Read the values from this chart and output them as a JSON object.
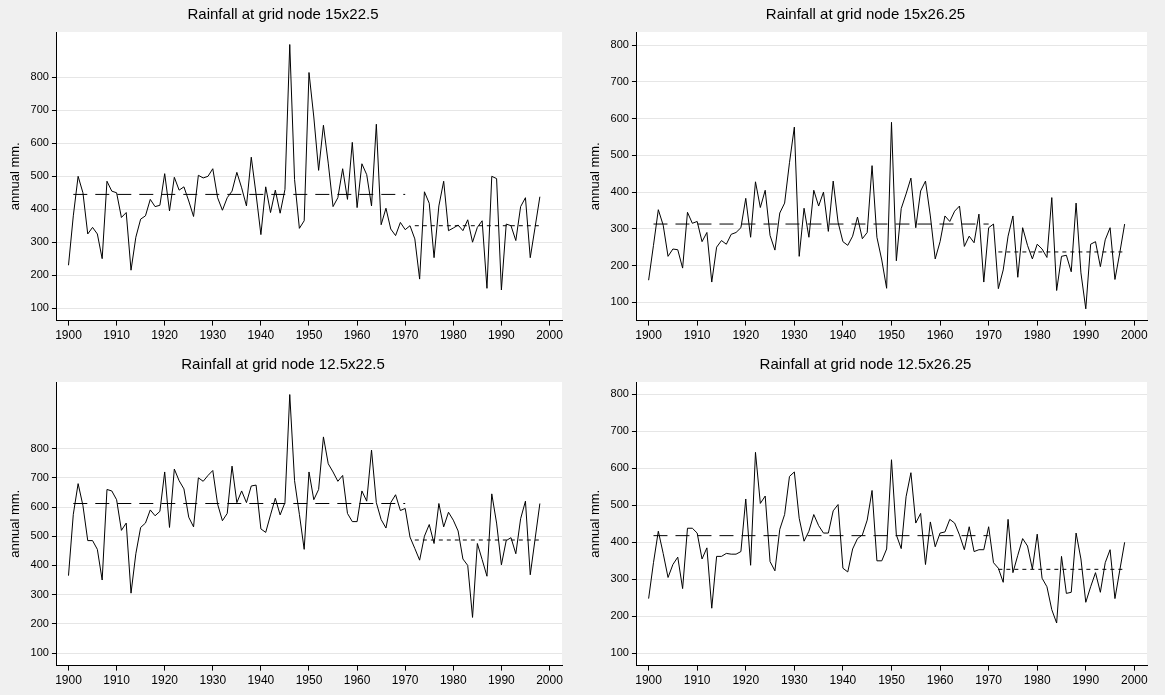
{
  "chart_data": [
    {
      "type": "line",
      "title": "Rainfall at grid node 15x22.5",
      "ylabel": "annual mm.",
      "xlim": [
        1897.6,
        2002.6
      ],
      "xticks": [
        1900,
        1910,
        1920,
        1930,
        1940,
        1950,
        1960,
        1970,
        1980,
        1990,
        2000
      ],
      "ylim": [
        62,
        938
      ],
      "yticks": [
        100,
        200,
        300,
        400,
        500,
        600,
        700,
        800
      ],
      "grid": "y",
      "legend": false,
      "marker": "none",
      "x": [
        1900,
        1901,
        1902,
        1903,
        1904,
        1905,
        1906,
        1907,
        1908,
        1909,
        1910,
        1911,
        1912,
        1913,
        1914,
        1915,
        1916,
        1917,
        1918,
        1919,
        1920,
        1921,
        1922,
        1923,
        1924,
        1925,
        1926,
        1927,
        1928,
        1929,
        1930,
        1931,
        1932,
        1933,
        1934,
        1935,
        1936,
        1937,
        1938,
        1939,
        1940,
        1941,
        1942,
        1943,
        1944,
        1945,
        1946,
        1947,
        1948,
        1949,
        1950,
        1951,
        1952,
        1953,
        1954,
        1955,
        1956,
        1957,
        1958,
        1959,
        1960,
        1961,
        1962,
        1963,
        1964,
        1965,
        1966,
        1967,
        1968,
        1969,
        1970,
        1971,
        1972,
        1973,
        1974,
        1975,
        1976,
        1977,
        1978,
        1979,
        1980,
        1981,
        1982,
        1983,
        1984,
        1985,
        1986,
        1987,
        1988,
        1989,
        1990,
        1991,
        1992,
        1993,
        1994,
        1995,
        1996,
        1997,
        1998
      ],
      "series": [
        {
          "color": "#000000",
          "line_style": "solid",
          "values": [
            230,
            380,
            500,
            450,
            325,
            345,
            325,
            250,
            485,
            455,
            450,
            375,
            390,
            215,
            315,
            370,
            380,
            430,
            408,
            412,
            508,
            395,
            497,
            458,
            468,
            425,
            378,
            503,
            495,
            500,
            523,
            435,
            397,
            435,
            455,
            512,
            465,
            410,
            558,
            445,
            323,
            468,
            390,
            458,
            388,
            460,
            900,
            490,
            342,
            365,
            815,
            680,
            518,
            655,
            540,
            408,
            435,
            523,
            430,
            603,
            405,
            538,
            505,
            410,
            658,
            353,
            403,
            340,
            320,
            360,
            338,
            350,
            310,
            188,
            453,
            418,
            253,
            410,
            485,
            335,
            343,
            352,
            335,
            368,
            300,
            345,
            365,
            160,
            500,
            493,
            155,
            355,
            350,
            305,
            408,
            435,
            253,
            345,
            438
          ]
        },
        {
          "type": "line",
          "color": "#000000",
          "line_style": "dashed",
          "x": [
            1901,
            1970
          ],
          "values": [
            445,
            445
          ]
        },
        {
          "type": "line",
          "color": "#000000",
          "line_style": "dotted",
          "x": [
            1972,
            1998
          ],
          "values": [
            350,
            350
          ]
        }
      ]
    },
    {
      "type": "line",
      "title": "Rainfall at grid node 15x26.25",
      "ylabel": "annual mm.",
      "xlim": [
        1897.6,
        2002.6
      ],
      "xticks": [
        1900,
        1910,
        1920,
        1930,
        1940,
        1950,
        1960,
        1970,
        1980,
        1990,
        2000
      ],
      "ylim": [
        50,
        836
      ],
      "yticks": [
        100,
        200,
        300,
        400,
        500,
        600,
        700,
        800
      ],
      "grid": "y",
      "legend": false,
      "marker": "none",
      "x": [
        1900,
        1901,
        1902,
        1903,
        1904,
        1905,
        1906,
        1907,
        1908,
        1909,
        1910,
        1911,
        1912,
        1913,
        1914,
        1915,
        1916,
        1917,
        1918,
        1919,
        1920,
        1921,
        1922,
        1923,
        1924,
        1925,
        1926,
        1927,
        1928,
        1929,
        1930,
        1931,
        1932,
        1933,
        1934,
        1935,
        1936,
        1937,
        1938,
        1939,
        1940,
        1941,
        1942,
        1943,
        1944,
        1945,
        1946,
        1947,
        1948,
        1949,
        1950,
        1951,
        1952,
        1953,
        1954,
        1955,
        1956,
        1957,
        1958,
        1959,
        1960,
        1961,
        1962,
        1963,
        1964,
        1965,
        1966,
        1967,
        1968,
        1969,
        1970,
        1971,
        1972,
        1973,
        1974,
        1975,
        1976,
        1977,
        1978,
        1979,
        1980,
        1981,
        1982,
        1983,
        1984,
        1985,
        1986,
        1987,
        1988,
        1989,
        1990,
        1991,
        1992,
        1993,
        1994,
        1995,
        1996,
        1997,
        1998
      ],
      "series": [
        {
          "color": "#000000",
          "line_style": "solid",
          "values": [
            160,
            255,
            352,
            310,
            225,
            245,
            243,
            193,
            345,
            315,
            320,
            265,
            290,
            155,
            250,
            268,
            258,
            285,
            290,
            303,
            383,
            277,
            428,
            358,
            405,
            282,
            242,
            343,
            370,
            480,
            577,
            225,
            356,
            277,
            405,
            362,
            400,
            293,
            430,
            318,
            265,
            255,
            280,
            332,
            273,
            290,
            472,
            277,
            215,
            138,
            590,
            213,
            355,
            395,
            438,
            303,
            403,
            430,
            335,
            218,
            265,
            335,
            320,
            348,
            362,
            252,
            280,
            262,
            340,
            155,
            303,
            313,
            137,
            188,
            280,
            335,
            168,
            303,
            255,
            218,
            258,
            245,
            222,
            385,
            132,
            225,
            228,
            183,
            370,
            180,
            82,
            258,
            265,
            197,
            270,
            303,
            162,
            235,
            313
          ]
        },
        {
          "type": "line",
          "color": "#000000",
          "line_style": "dashed",
          "x": [
            1901,
            1970
          ],
          "values": [
            313,
            313
          ]
        },
        {
          "type": "line",
          "color": "#000000",
          "line_style": "dotted",
          "x": [
            1972,
            1998
          ],
          "values": [
            237,
            237
          ]
        }
      ]
    },
    {
      "type": "line",
      "title": "Rainfall at grid node 12.5x22.5",
      "ylabel": "annual mm.",
      "xlim": [
        1897.6,
        2002.6
      ],
      "xticks": [
        1900,
        1910,
        1920,
        1930,
        1940,
        1950,
        1960,
        1970,
        1980,
        1990,
        2000
      ],
      "ylim": [
        57,
        1028
      ],
      "yticks": [
        100,
        200,
        300,
        400,
        500,
        600,
        700,
        800
      ],
      "grid": "y",
      "legend": false,
      "marker": "none",
      "x": [
        1900,
        1901,
        1902,
        1903,
        1904,
        1905,
        1906,
        1907,
        1908,
        1909,
        1910,
        1911,
        1912,
        1913,
        1914,
        1915,
        1916,
        1917,
        1918,
        1919,
        1920,
        1921,
        1922,
        1923,
        1924,
        1925,
        1926,
        1927,
        1928,
        1929,
        1930,
        1931,
        1932,
        1933,
        1934,
        1935,
        1936,
        1937,
        1938,
        1939,
        1940,
        1941,
        1942,
        1943,
        1944,
        1945,
        1946,
        1947,
        1948,
        1949,
        1950,
        1951,
        1952,
        1953,
        1954,
        1955,
        1956,
        1957,
        1958,
        1959,
        1960,
        1961,
        1962,
        1963,
        1964,
        1965,
        1966,
        1967,
        1968,
        1969,
        1970,
        1971,
        1972,
        1973,
        1974,
        1975,
        1976,
        1977,
        1978,
        1979,
        1980,
        1981,
        1982,
        1983,
        1984,
        1985,
        1986,
        1987,
        1988,
        1989,
        1990,
        1991,
        1992,
        1993,
        1994,
        1995,
        1996,
        1997,
        1998
      ],
      "series": [
        {
          "color": "#000000",
          "line_style": "solid",
          "values": [
            365,
            575,
            680,
            605,
            485,
            485,
            455,
            350,
            660,
            655,
            625,
            520,
            545,
            305,
            440,
            530,
            545,
            590,
            570,
            585,
            720,
            530,
            730,
            690,
            662,
            565,
            532,
            700,
            688,
            708,
            725,
            610,
            553,
            578,
            740,
            615,
            655,
            615,
            672,
            675,
            525,
            513,
            573,
            630,
            573,
            615,
            985,
            690,
            575,
            455,
            720,
            625,
            660,
            840,
            748,
            720,
            688,
            708,
            578,
            550,
            550,
            655,
            620,
            795,
            615,
            557,
            528,
            615,
            642,
            588,
            595,
            497,
            458,
            418,
            500,
            540,
            475,
            612,
            532,
            582,
            555,
            518,
            422,
            400,
            222,
            475,
            420,
            363,
            645,
            545,
            402,
            485,
            495,
            440,
            560,
            620,
            368,
            490,
            612
          ]
        },
        {
          "type": "line",
          "color": "#000000",
          "line_style": "dashed",
          "x": [
            1901,
            1970
          ],
          "values": [
            612,
            612
          ]
        },
        {
          "type": "line",
          "color": "#000000",
          "line_style": "dotted",
          "x": [
            1972,
            1998
          ],
          "values": [
            487,
            487
          ]
        }
      ]
    },
    {
      "type": "line",
      "title": "Rainfall at grid node 12.5x26.25",
      "ylabel": "annual mm.",
      "xlim": [
        1897.6,
        2002.6
      ],
      "xticks": [
        1900,
        1910,
        1920,
        1930,
        1940,
        1950,
        1960,
        1970,
        1980,
        1990,
        2000
      ],
      "ylim": [
        67,
        833
      ],
      "yticks": [
        100,
        200,
        300,
        400,
        500,
        600,
        700,
        800
      ],
      "grid": "y",
      "legend": false,
      "marker": "none",
      "x": [
        1900,
        1901,
        1902,
        1903,
        1904,
        1905,
        1906,
        1907,
        1908,
        1909,
        1910,
        1911,
        1912,
        1913,
        1914,
        1915,
        1916,
        1917,
        1918,
        1919,
        1920,
        1921,
        1922,
        1923,
        1924,
        1925,
        1926,
        1927,
        1928,
        1929,
        1930,
        1931,
        1932,
        1933,
        1934,
        1935,
        1936,
        1937,
        1938,
        1939,
        1940,
        1941,
        1942,
        1943,
        1944,
        1945,
        1946,
        1947,
        1948,
        1949,
        1950,
        1951,
        1952,
        1953,
        1954,
        1955,
        1956,
        1957,
        1958,
        1959,
        1960,
        1961,
        1962,
        1963,
        1964,
        1965,
        1966,
        1967,
        1968,
        1969,
        1970,
        1971,
        1972,
        1973,
        1974,
        1975,
        1976,
        1977,
        1978,
        1979,
        1980,
        1981,
        1982,
        1983,
        1984,
        1985,
        1986,
        1987,
        1988,
        1989,
        1990,
        1991,
        1992,
        1993,
        1994,
        1995,
        1996,
        1997,
        1998
      ],
      "series": [
        {
          "color": "#000000",
          "line_style": "solid",
          "values": [
            248,
            345,
            430,
            370,
            305,
            340,
            360,
            275,
            438,
            438,
            425,
            355,
            385,
            222,
            362,
            362,
            370,
            368,
            368,
            375,
            517,
            338,
            643,
            505,
            525,
            348,
            323,
            435,
            475,
            578,
            590,
            465,
            403,
            430,
            475,
            445,
            425,
            425,
            485,
            502,
            330,
            320,
            382,
            410,
            420,
            460,
            540,
            350,
            350,
            382,
            623,
            420,
            383,
            523,
            588,
            452,
            478,
            340,
            455,
            388,
            425,
            428,
            462,
            452,
            420,
            380,
            442,
            375,
            380,
            380,
            442,
            345,
            330,
            292,
            462,
            318,
            365,
            410,
            390,
            328,
            422,
            303,
            280,
            218,
            182,
            362,
            262,
            265,
            425,
            355,
            238,
            280,
            318,
            265,
            345,
            380,
            248,
            325,
            400
          ]
        },
        {
          "type": "line",
          "color": "#000000",
          "line_style": "dashed",
          "x": [
            1901,
            1970
          ],
          "values": [
            418,
            418
          ]
        },
        {
          "type": "line",
          "color": "#000000",
          "line_style": "dotted",
          "x": [
            1972,
            1998
          ],
          "values": [
            327,
            327
          ]
        }
      ]
    }
  ]
}
